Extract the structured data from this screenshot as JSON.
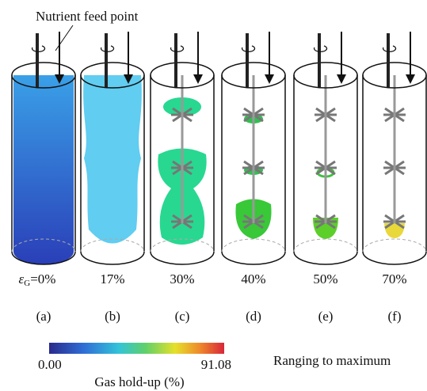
{
  "annotation": "Nutrient feed point",
  "symbol": "ε",
  "subscript": "G",
  "panels": [
    {
      "holdup": "=0%",
      "letter": "(a)"
    },
    {
      "holdup": "17%",
      "letter": "(b)"
    },
    {
      "holdup": "30%",
      "letter": "(c)"
    },
    {
      "holdup": "40%",
      "letter": "(d)"
    },
    {
      "holdup": "50%",
      "letter": "(e)"
    },
    {
      "holdup": "70%",
      "letter": "(f)"
    }
  ],
  "colorbar": {
    "min": "0.00",
    "max": "91.08",
    "title": "Gas hold-up (%)"
  },
  "note": "Ranging to maximum"
}
